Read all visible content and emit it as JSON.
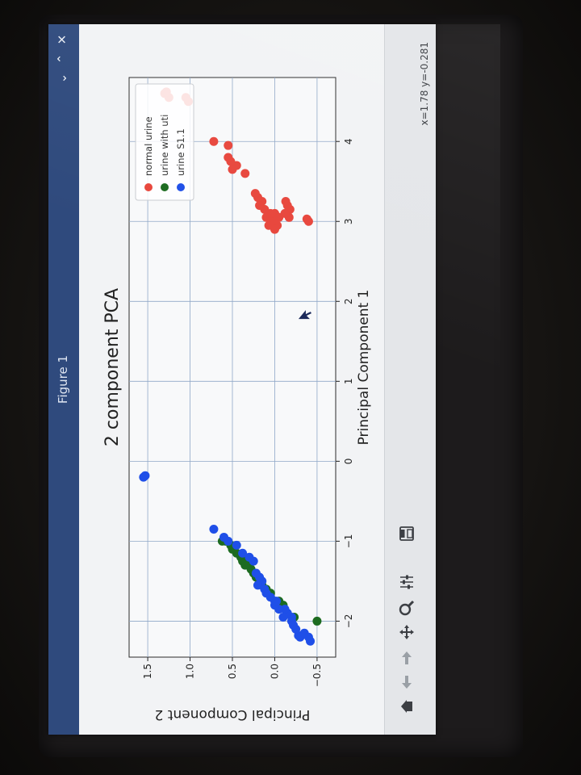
{
  "window": {
    "title": "Figure 1",
    "controls": [
      "⌄",
      "⌃",
      "✕"
    ]
  },
  "toolbar": {
    "buttons": [
      {
        "icon": "home-icon"
      },
      {
        "icon": "back-arrow-icon"
      },
      {
        "icon": "forward-arrow-icon"
      },
      {
        "icon": "pan-icon"
      },
      {
        "icon": "zoom-icon"
      },
      {
        "icon": "configure-subplots-icon"
      },
      {
        "icon": "save-icon"
      }
    ],
    "coords": "x=1.78 y=-0.281"
  },
  "chart_data": {
    "type": "scatter",
    "title": "2 component PCA",
    "xlabel": "Principal Component 1",
    "ylabel": "Principal Component 2",
    "xlim": [
      -2.45,
      4.8
    ],
    "ylim": [
      -0.72,
      1.72
    ],
    "xticks": [
      "−2",
      "−1",
      "0",
      "1",
      "2",
      "3",
      "4"
    ],
    "xtick_values": [
      -2,
      -1,
      0,
      1,
      2,
      3,
      4
    ],
    "yticks": [
      "−0.5",
      "0.0",
      "0.5",
      "1.0",
      "1.5"
    ],
    "ytick_values": [
      -0.5,
      0,
      0.5,
      1.0,
      1.5
    ],
    "grid": true,
    "legend_position": "upper right",
    "series": [
      {
        "name": "normal urine",
        "color": "#e8463c",
        "points": [
          [
            3.0,
            -0.4
          ],
          [
            3.03,
            -0.38
          ],
          [
            3.15,
            -0.18
          ],
          [
            3.2,
            -0.15
          ],
          [
            3.25,
            -0.13
          ],
          [
            3.05,
            -0.17
          ],
          [
            3.1,
            -0.12
          ],
          [
            2.95,
            -0.03
          ],
          [
            2.9,
            0.0
          ],
          [
            3.0,
            0.03
          ],
          [
            3.1,
            0.05
          ],
          [
            2.95,
            0.07
          ],
          [
            3.05,
            0.1
          ],
          [
            3.15,
            0.12
          ],
          [
            3.25,
            0.15
          ],
          [
            3.2,
            0.18
          ],
          [
            3.3,
            0.2
          ],
          [
            3.35,
            0.23
          ],
          [
            3.1,
            0.0
          ],
          [
            3.05,
            -0.05
          ],
          [
            3.6,
            0.35
          ],
          [
            3.7,
            0.45
          ],
          [
            3.65,
            0.5
          ],
          [
            3.75,
            0.52
          ],
          [
            3.8,
            0.55
          ],
          [
            3.95,
            0.55
          ],
          [
            4.0,
            0.72
          ],
          [
            4.5,
            1.02
          ],
          [
            4.55,
            1.05
          ],
          [
            4.55,
            1.25
          ],
          [
            4.6,
            1.3
          ],
          [
            4.62,
            1.28
          ]
        ]
      },
      {
        "name": "urine with uti",
        "color": "#1c6b20",
        "points": [
          [
            -2.0,
            -0.5
          ],
          [
            -1.95,
            -0.23
          ],
          [
            -1.8,
            -0.1
          ],
          [
            -1.75,
            -0.05
          ],
          [
            -1.65,
            0.05
          ],
          [
            -1.6,
            0.1
          ],
          [
            -1.55,
            0.15
          ],
          [
            -1.5,
            0.18
          ],
          [
            -1.45,
            0.22
          ],
          [
            -1.4,
            0.25
          ],
          [
            -1.35,
            0.28
          ],
          [
            -1.3,
            0.3
          ],
          [
            -1.3,
            0.35
          ],
          [
            -1.25,
            0.33
          ],
          [
            -1.2,
            0.4
          ],
          [
            -1.25,
            0.38
          ],
          [
            -1.15,
            0.45
          ],
          [
            -1.1,
            0.5
          ],
          [
            -1.05,
            0.52
          ],
          [
            -1.0,
            0.58
          ],
          [
            -1.0,
            0.62
          ]
        ]
      },
      {
        "name": "urine S1.1",
        "color": "#1f4fe8",
        "points": [
          [
            -2.2,
            -0.3
          ],
          [
            -2.18,
            -0.28
          ],
          [
            -2.15,
            -0.35
          ],
          [
            -2.2,
            -0.4
          ],
          [
            -2.25,
            -0.42
          ],
          [
            -2.1,
            -0.25
          ],
          [
            -2.05,
            -0.22
          ],
          [
            -2.0,
            -0.2
          ],
          [
            -1.95,
            -0.2
          ],
          [
            -1.9,
            -0.15
          ],
          [
            -1.95,
            -0.1
          ],
          [
            -1.85,
            -0.12
          ],
          [
            -1.85,
            -0.05
          ],
          [
            -1.8,
            0.0
          ],
          [
            -1.75,
            0.0
          ],
          [
            -1.7,
            0.05
          ],
          [
            -1.75,
            -0.02
          ],
          [
            -1.65,
            0.1
          ],
          [
            -1.6,
            0.12
          ],
          [
            -1.5,
            0.15
          ],
          [
            -1.55,
            0.2
          ],
          [
            -1.45,
            0.18
          ],
          [
            -1.4,
            0.22
          ],
          [
            -1.25,
            0.25
          ],
          [
            -1.2,
            0.3
          ],
          [
            -1.15,
            0.38
          ],
          [
            -1.05,
            0.45
          ],
          [
            -1.0,
            0.55
          ],
          [
            -0.95,
            0.6
          ],
          [
            -0.85,
            0.72
          ],
          [
            -0.2,
            1.55
          ],
          [
            -0.18,
            1.53
          ]
        ]
      }
    ]
  }
}
